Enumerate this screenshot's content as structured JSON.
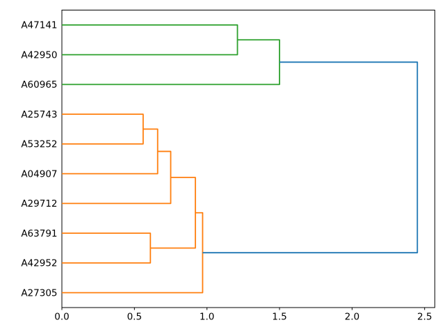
{
  "chart_data": {
    "type": "dendrogram",
    "orientation": "horizontal-leaves-left",
    "title": "",
    "leaves": [
      "A47141",
      "A42950",
      "A60965",
      "A25743",
      "A53252",
      "A04907",
      "A29712",
      "A63791",
      "A42952",
      "A27305"
    ],
    "merges": [
      {
        "a": "A47141",
        "b": "A42950",
        "distance": 1.21,
        "color": "green"
      },
      {
        "a": "M0",
        "b": "A60965",
        "distance": 1.5,
        "color": "green"
      },
      {
        "a": "A25743",
        "b": "A53252",
        "distance": 0.56,
        "color": "orange"
      },
      {
        "a": "M2",
        "b": "A04907",
        "distance": 0.66,
        "color": "orange"
      },
      {
        "a": "M3",
        "b": "A29712",
        "distance": 0.75,
        "color": "orange"
      },
      {
        "a": "A63791",
        "b": "A42952",
        "distance": 0.61,
        "color": "orange"
      },
      {
        "a": "M4",
        "b": "M5",
        "distance": 0.92,
        "color": "orange"
      },
      {
        "a": "M6",
        "b": "A27305",
        "distance": 0.97,
        "color": "orange"
      },
      {
        "a": "M1",
        "b": "M7",
        "distance": 2.45,
        "color": "blue"
      }
    ],
    "x_ticks": {
      "values": [
        0.0,
        0.5,
        1.0,
        1.5,
        2.0,
        2.5
      ],
      "labels": [
        "0.0",
        "0.5",
        "1.0",
        "1.5",
        "2.0",
        "2.5"
      ]
    },
    "xlim": [
      0,
      2.57
    ],
    "grid": false,
    "legend": null,
    "colors": {
      "blue": "#1f77b4",
      "orange": "#ff7f0e",
      "green": "#2ca02c",
      "axis": "#000000",
      "background": "#ffffff"
    }
  }
}
